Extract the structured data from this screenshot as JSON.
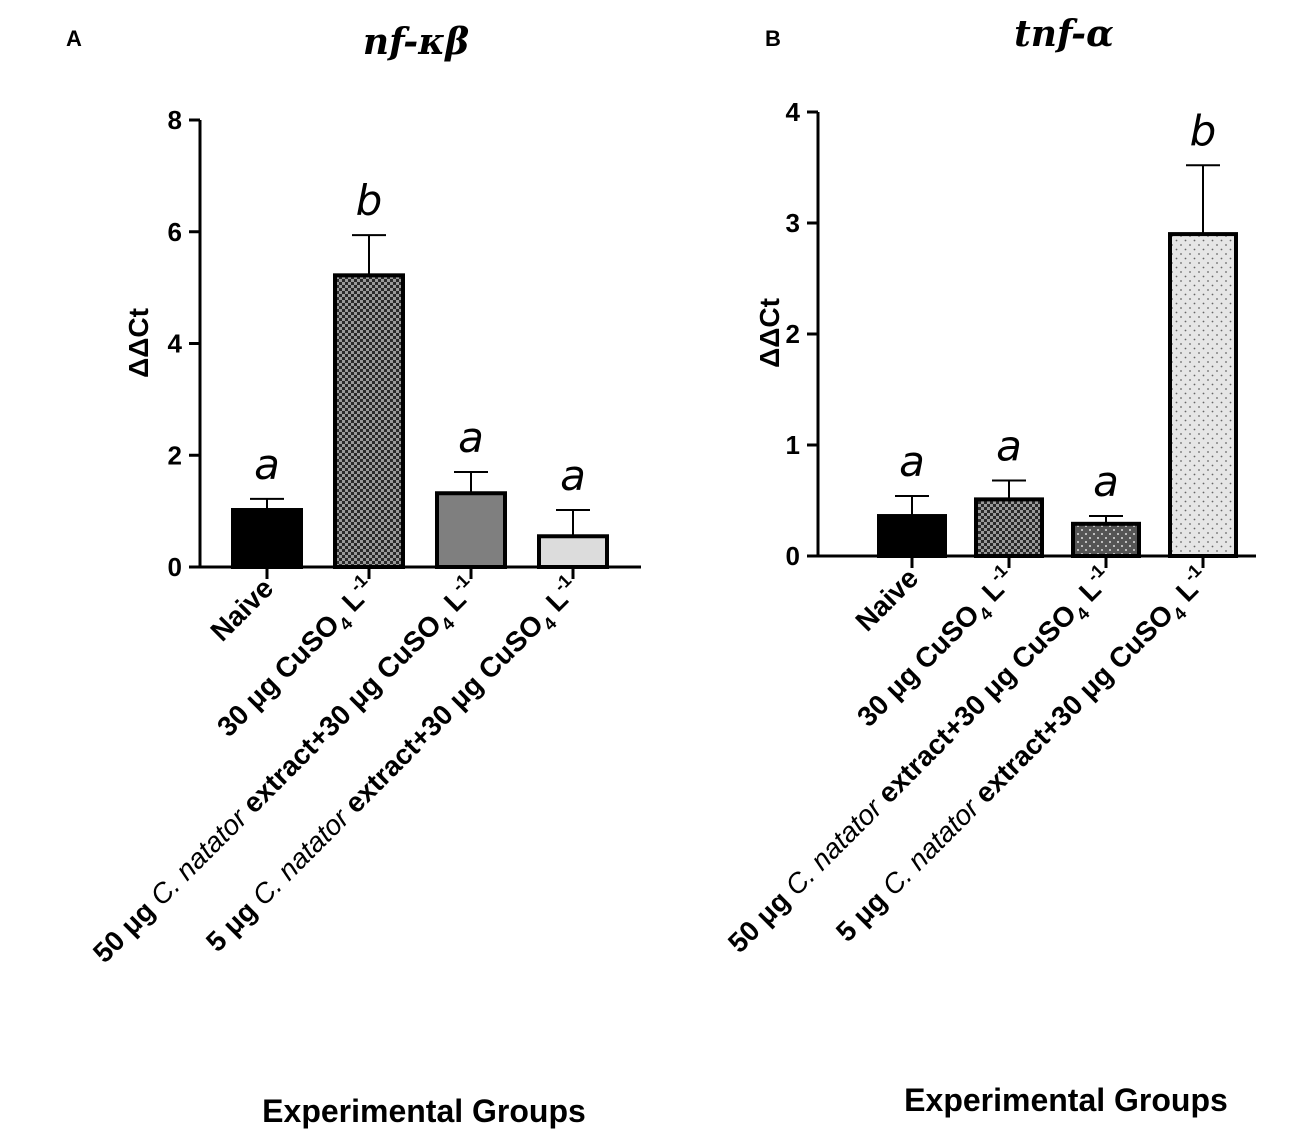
{
  "chart_data": [
    {
      "type": "bar",
      "panel": "A",
      "title": "nf-κβ",
      "ylabel": "ΔΔCt",
      "xlabel": "Experimental Groups",
      "ylim": [
        0,
        8
      ],
      "yticks": [
        "0",
        "2",
        "4",
        "6",
        "8"
      ],
      "categories": [
        {
          "id": "naive",
          "parts": [
            {
              "t": "Naive"
            }
          ]
        },
        {
          "id": "cu30",
          "parts": [
            {
              "t": "30 μg CuSO"
            },
            {
              "t": "4",
              "sub": true
            },
            {
              "t": " L"
            },
            {
              "t": "-1",
              "sup": true
            }
          ]
        },
        {
          "id": "ext50",
          "parts": [
            {
              "t": "50 μg "
            },
            {
              "t": "C. natator",
              "it": true
            },
            {
              "t": " extract+30 μg CuSO"
            },
            {
              "t": "4",
              "sub": true
            },
            {
              "t": " L"
            },
            {
              "t": "-1",
              "sup": true
            }
          ]
        },
        {
          "id": "ext5",
          "parts": [
            {
              "t": "5 μg "
            },
            {
              "t": "C. natator",
              "it": true
            },
            {
              "t": " extract+30 μg CuSO"
            },
            {
              "t": "4",
              "sub": true
            },
            {
              "t": " L"
            },
            {
              "t": "-1",
              "sup": true
            }
          ]
        }
      ],
      "values": [
        1.02,
        5.22,
        1.32,
        0.55
      ],
      "errors": [
        0.2,
        0.72,
        0.38,
        0.47
      ],
      "letters": [
        "a",
        "b",
        "a",
        "a"
      ],
      "fills": [
        "black",
        "checker",
        "gray",
        "lightgray"
      ]
    },
    {
      "type": "bar",
      "panel": "B",
      "title": "tnf-α",
      "ylabel": "ΔΔCt",
      "xlabel": "Experimental Groups",
      "ylim": [
        0,
        4
      ],
      "yticks": [
        "0",
        "1",
        "2",
        "3",
        "4"
      ],
      "categories": [
        {
          "id": "naive",
          "parts": [
            {
              "t": "Naive"
            }
          ]
        },
        {
          "id": "cu30",
          "parts": [
            {
              "t": "30 μg CuSO"
            },
            {
              "t": "4",
              "sub": true
            },
            {
              "t": " L"
            },
            {
              "t": "-1",
              "sup": true
            }
          ]
        },
        {
          "id": "ext50",
          "parts": [
            {
              "t": "50 μg "
            },
            {
              "t": "C. natator",
              "it": true
            },
            {
              "t": " extract+30 μg CuSO"
            },
            {
              "t": "4",
              "sub": true
            },
            {
              "t": " L"
            },
            {
              "t": "-1",
              "sup": true
            }
          ]
        },
        {
          "id": "ext5",
          "parts": [
            {
              "t": "5 μg "
            },
            {
              "t": "C. natator",
              "it": true
            },
            {
              "t": " extract+30 μg CuSO"
            },
            {
              "t": "4",
              "sub": true
            },
            {
              "t": " L"
            },
            {
              "t": "-1",
              "sup": true
            }
          ]
        }
      ],
      "values": [
        0.36,
        0.51,
        0.29,
        2.9
      ],
      "errors": [
        0.18,
        0.17,
        0.07,
        0.62
      ],
      "letters": [
        "a",
        "a",
        "a",
        "b"
      ],
      "fills": [
        "black",
        "checker",
        "darkdots",
        "lightdots"
      ]
    }
  ]
}
